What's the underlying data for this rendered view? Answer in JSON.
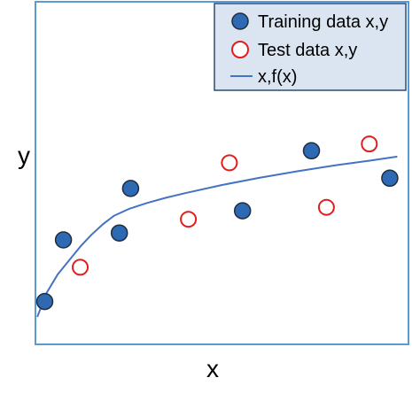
{
  "chart_data": {
    "type": "scatter",
    "xlabel": "x",
    "ylabel": "y",
    "xlim": [
      0,
      10
    ],
    "ylim": [
      0,
      10
    ],
    "grid": false,
    "ticks": false,
    "legend": {
      "placement": "top-right"
    },
    "series": [
      {
        "name": "Training data x,y",
        "kind": "points",
        "marker": "filled-circle",
        "color": "#2e6ab4",
        "edge_color": "#1f2d3d",
        "x": [
          0.25,
          0.75,
          2.25,
          2.55,
          5.55,
          7.4,
          9.5
        ],
        "y": [
          1.25,
          3.05,
          3.25,
          4.55,
          3.9,
          5.65,
          4.85
        ]
      },
      {
        "name": "Test data x,y",
        "kind": "points",
        "marker": "open-circle",
        "color": "#e11d1d",
        "x": [
          1.2,
          4.1,
          5.2,
          7.8,
          8.95
        ],
        "y": [
          2.25,
          3.65,
          5.3,
          4.0,
          5.85
        ]
      },
      {
        "name": "x,f(x)",
        "kind": "line",
        "color": "#4472c4",
        "x": [
          0.05,
          0.3,
          0.6,
          0.9,
          1.2,
          1.5,
          1.8,
          2.1,
          2.5,
          3.0,
          3.5,
          4.0,
          5.0,
          6.0,
          7.0,
          8.0,
          9.0,
          9.7
        ],
        "y": [
          0.8,
          1.5,
          2.05,
          2.45,
          2.85,
          3.2,
          3.5,
          3.75,
          3.95,
          4.13,
          4.28,
          4.41,
          4.65,
          4.86,
          5.05,
          5.22,
          5.37,
          5.48
        ]
      }
    ]
  }
}
